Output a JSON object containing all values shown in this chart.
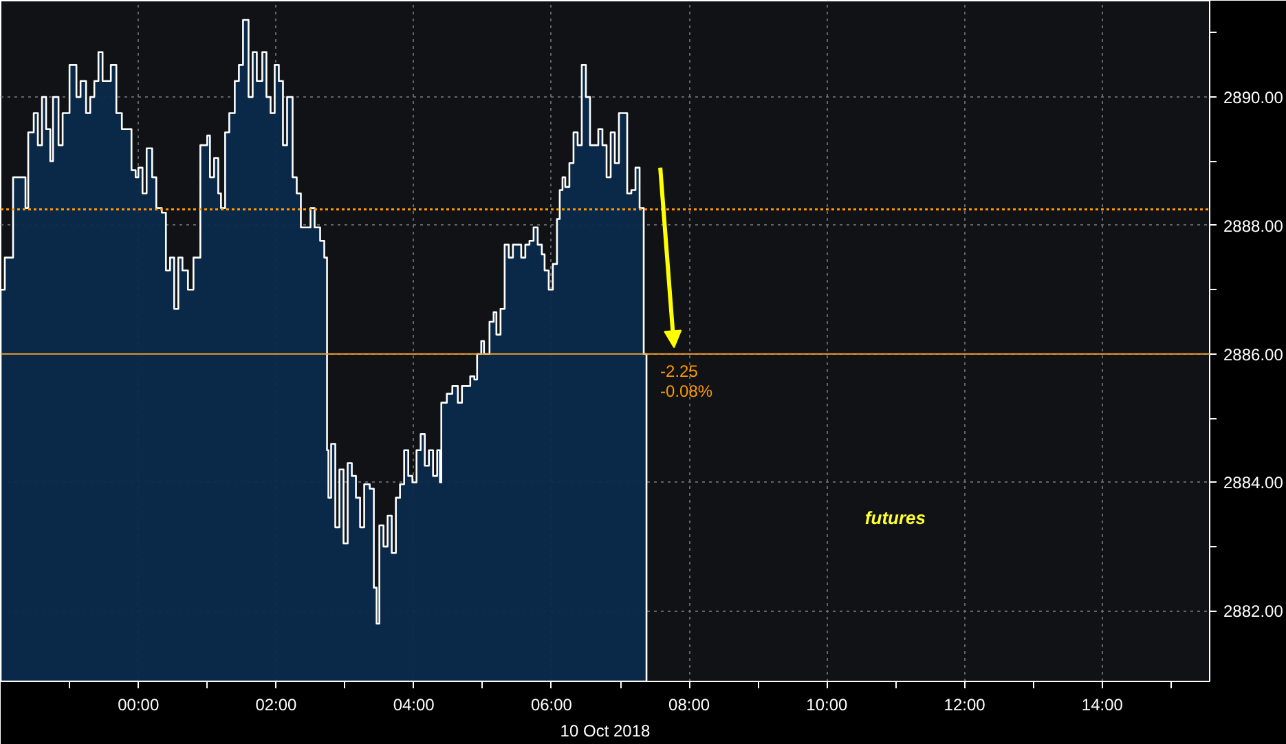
{
  "chart_data": {
    "type": "area",
    "xlabel": "10 Oct 2018",
    "x": [
      -2.0,
      -1.94,
      -1.82,
      -1.7,
      -1.64,
      -1.6,
      -1.52,
      -1.46,
      -1.4,
      -1.34,
      -1.28,
      -1.24,
      -1.16,
      -1.1,
      -1.0,
      -0.9,
      -0.84,
      -0.76,
      -0.7,
      -0.64,
      -0.58,
      -0.52,
      -0.4,
      -0.32,
      -0.24,
      -0.16,
      -0.1,
      -0.04,
      0.0,
      0.06,
      0.12,
      0.2,
      0.26,
      0.34,
      0.4,
      0.46,
      0.52,
      0.58,
      0.64,
      0.72,
      0.8,
      0.9,
      1.0,
      1.04,
      1.1,
      1.16,
      1.2,
      1.26,
      1.32,
      1.4,
      1.46,
      1.52,
      1.6,
      1.66,
      1.72,
      1.8,
      1.86,
      1.92,
      1.98,
      2.04,
      2.1,
      2.16,
      2.24,
      2.3,
      2.36,
      2.42,
      2.5,
      2.56,
      2.64,
      2.7,
      2.74,
      2.76,
      2.8,
      2.86,
      2.92,
      2.98,
      3.04,
      3.1,
      3.16,
      3.22,
      3.28,
      3.36,
      3.42,
      3.46,
      3.5,
      3.56,
      3.62,
      3.68,
      3.74,
      3.8,
      3.86,
      3.92,
      3.98,
      4.04,
      4.1,
      4.16,
      4.22,
      4.28,
      4.34,
      4.38,
      4.4,
      4.48,
      4.56,
      4.64,
      4.7,
      4.76,
      4.82,
      4.88,
      4.92,
      4.98,
      5.02,
      5.1,
      5.16,
      5.2,
      5.26,
      5.32,
      5.38,
      5.44,
      5.5,
      5.56,
      5.62,
      5.68,
      5.74,
      5.8,
      5.86,
      5.9,
      5.96,
      6.02,
      6.08,
      6.12,
      6.16,
      6.2,
      6.26,
      6.32,
      6.38,
      6.44,
      6.5,
      6.56,
      6.62,
      6.68,
      6.74,
      6.8,
      6.86,
      6.92,
      6.98,
      7.06,
      7.1,
      7.16,
      7.22,
      7.28,
      7.34,
      7.38
    ],
    "series": [
      {
        "color": "#0b2a4a",
        "values": [
          2887.0,
          2887.5,
          2888.75,
          2888.75,
          2888.27,
          2889.45,
          2889.75,
          2889.25,
          2890.0,
          2889.5,
          2889.0,
          2890.0,
          2889.25,
          2889.75,
          2890.5,
          2890.0,
          2890.25,
          2889.75,
          2890.0,
          2890.25,
          2890.7,
          2890.25,
          2890.5,
          2889.75,
          2889.5,
          2889.5,
          2888.86,
          2888.75,
          2888.9,
          2888.5,
          2889.2,
          2888.75,
          2888.27,
          2888.2,
          2887.3,
          2887.5,
          2886.7,
          2887.5,
          2887.3,
          2887.0,
          2887.5,
          2889.25,
          2889.4,
          2888.75,
          2889.05,
          2888.5,
          2888.27,
          2889.45,
          2889.75,
          2890.25,
          2890.5,
          2891.2,
          2890.0,
          2890.7,
          2890.25,
          2890.7,
          2890.0,
          2889.75,
          2890.5,
          2890.25,
          2889.25,
          2890.0,
          2888.75,
          2888.5,
          2887.97,
          2887.97,
          2888.27,
          2887.97,
          2887.76,
          2887.5,
          2884.5,
          2883.76,
          2884.6,
          2883.3,
          2884.2,
          2883.05,
          2884.3,
          2884.1,
          2883.76,
          2883.3,
          2883.97,
          2883.9,
          2882.36,
          2881.8,
          2883.33,
          2883.0,
          2883.48,
          2882.9,
          2883.76,
          2883.97,
          2884.5,
          2884.1,
          2884.0,
          2884.5,
          2884.75,
          2884.26,
          2884.5,
          2884.1,
          2884.5,
          2884.0,
          2885.24,
          2885.38,
          2885.5,
          2885.24,
          2885.5,
          2885.5,
          2885.65,
          2885.6,
          2886.0,
          2886.2,
          2886.0,
          2886.5,
          2886.65,
          2886.3,
          2886.7,
          2887.7,
          2887.5,
          2887.7,
          2887.7,
          2887.5,
          2887.7,
          2887.76,
          2887.97,
          2887.7,
          2887.55,
          2887.3,
          2887.0,
          2887.4,
          2888.1,
          2888.55,
          2888.75,
          2888.6,
          2888.97,
          2889.45,
          2889.25,
          2890.5,
          2890.0,
          2889.25,
          2889.25,
          2889.5,
          2889.25,
          2888.75,
          2889.45,
          2888.97,
          2889.75,
          2889.75,
          2888.5,
          2888.55,
          2888.9,
          2888.27,
          2886.0,
          2886.0
        ]
      }
    ],
    "xlim": [
      -2.0,
      15.56
    ],
    "ylim": [
      2880.9,
      2891.5
    ],
    "xticks": [
      {
        "value": -1,
        "label": null
      },
      {
        "value": 0,
        "label": "00:00"
      },
      {
        "value": 1,
        "label": null
      },
      {
        "value": 2,
        "label": "02:00"
      },
      {
        "value": 3,
        "label": null
      },
      {
        "value": 4,
        "label": "04:00"
      },
      {
        "value": 5,
        "label": null
      },
      {
        "value": 6,
        "label": "06:00"
      },
      {
        "value": 7,
        "label": null
      },
      {
        "value": 8,
        "label": "08:00"
      },
      {
        "value": 9,
        "label": null
      },
      {
        "value": 10,
        "label": "10:00"
      },
      {
        "value": 11,
        "label": null
      },
      {
        "value": 12,
        "label": "12:00"
      },
      {
        "value": 13,
        "label": null
      },
      {
        "value": 14,
        "label": "14:00"
      },
      {
        "value": 15,
        "label": null
      }
    ],
    "yticks": [
      {
        "value": 2882,
        "label": "2882.00"
      },
      {
        "value": 2883,
        "label": null
      },
      {
        "value": 2884,
        "label": "2884.00"
      },
      {
        "value": 2885,
        "label": null
      },
      {
        "value": 2886,
        "label": "2886.00"
      },
      {
        "value": 2887,
        "label": null
      },
      {
        "value": 2888,
        "label": "2888.00"
      },
      {
        "value": 2889,
        "label": null
      },
      {
        "value": 2890,
        "label": "2890.00"
      },
      {
        "value": 2891,
        "label": null
      }
    ],
    "ref_lines": [
      {
        "axis": "y",
        "value": 2888.25,
        "color": "#ff9900",
        "line_style": "dotted"
      },
      {
        "axis": "y",
        "value": 2886.0,
        "color": "#f0a030",
        "line_style": "solid"
      }
    ],
    "annotations": [
      "-2.25",
      "-0.08%",
      "futures"
    ],
    "grid": true
  }
}
